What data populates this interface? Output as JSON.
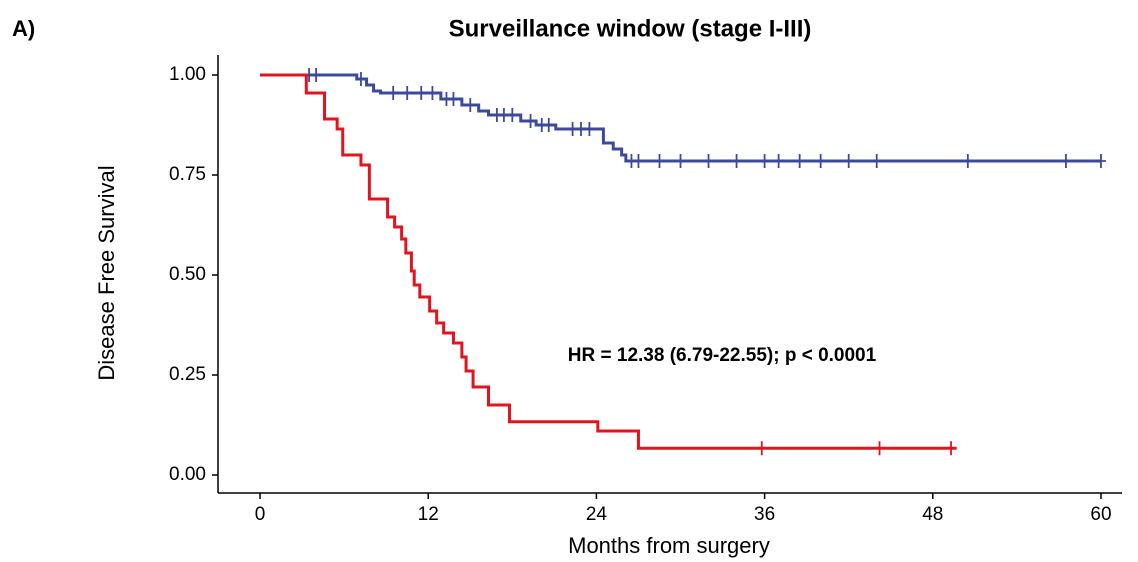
{
  "chart_data": {
    "type": "step",
    "panel_label": "A)",
    "title": "Surveillance window (stage I-III)",
    "xlabel": "Months from surgery",
    "ylabel": "Disease Free Survival",
    "annotation": "HR = 12.38 (6.79-22.55); p < 0.0001",
    "xlim": [
      -3,
      61.5
    ],
    "ylim": [
      -0.045,
      1.05
    ],
    "xticks": [
      0,
      12,
      24,
      36,
      48,
      60
    ],
    "yticks": [
      {
        "value": 0,
        "label": "0.00"
      },
      {
        "value": 0.25,
        "label": "0.25"
      },
      {
        "value": 0.5,
        "label": "0.50"
      },
      {
        "value": 0.75,
        "label": "0.75"
      },
      {
        "value": 1,
        "label": "1.00"
      }
    ],
    "series": [
      {
        "color": "#3c4a9c",
        "x": [
          0,
          6.9,
          7.6,
          8.1,
          8.6,
          12.9,
          14.4,
          15.6,
          16.3,
          18.6,
          19.7,
          21.1,
          24.5,
          25.2,
          25.8,
          26.1,
          60
        ],
        "values": [
          1.0,
          0.99,
          0.975,
          0.96,
          0.955,
          0.94,
          0.925,
          0.91,
          0.9,
          0.885,
          0.875,
          0.865,
          0.83,
          0.815,
          0.8,
          0.785,
          0.785
        ],
        "censor_x": [
          3.5,
          4.0,
          7.2,
          9.5,
          10.5,
          11.5,
          12.3,
          13.3,
          13.8,
          15.0,
          16.9,
          17.4,
          18.0,
          19.3,
          20.1,
          20.6,
          22.3,
          22.9,
          23.5,
          26.5,
          27.0,
          28.5,
          30.0,
          32.0,
          34.0,
          36.0,
          37.0,
          38.5,
          40.0,
          42.0,
          44.0,
          50.5,
          57.5,
          60.0
        ],
        "censor_values": [
          1.0,
          1.0,
          0.99,
          0.955,
          0.955,
          0.955,
          0.955,
          0.94,
          0.94,
          0.925,
          0.9,
          0.9,
          0.9,
          0.885,
          0.875,
          0.875,
          0.865,
          0.865,
          0.865,
          0.785,
          0.785,
          0.785,
          0.785,
          0.785,
          0.785,
          0.785,
          0.785,
          0.785,
          0.785,
          0.785,
          0.785,
          0.785,
          0.785,
          0.785
        ]
      },
      {
        "color": "#e3141e",
        "x": [
          0,
          3.3,
          4.6,
          5.5,
          5.9,
          7.2,
          7.8,
          9.1,
          9.6,
          10.1,
          10.4,
          10.8,
          11.0,
          11.4,
          12.1,
          12.6,
          13.1,
          13.8,
          14.4,
          14.7,
          15.2,
          16.3,
          17.8,
          24.1,
          27.0,
          49.7
        ],
        "values": [
          1.0,
          0.955,
          0.89,
          0.865,
          0.8,
          0.775,
          0.69,
          0.645,
          0.62,
          0.59,
          0.555,
          0.51,
          0.475,
          0.445,
          0.41,
          0.38,
          0.355,
          0.33,
          0.295,
          0.26,
          0.22,
          0.175,
          0.133,
          0.11,
          0.067,
          0.067
        ],
        "censor_x": [
          35.8,
          44.2,
          49.3
        ],
        "censor_values": [
          0.067,
          0.067,
          0.067
        ]
      }
    ]
  }
}
